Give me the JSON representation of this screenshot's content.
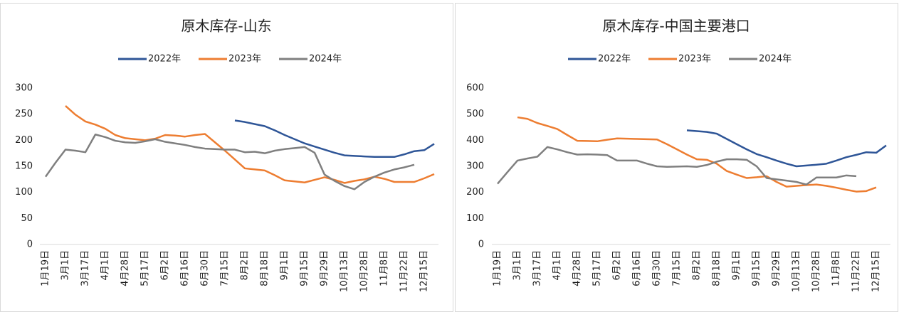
{
  "chart_data": [
    {
      "type": "line",
      "title": "原木库存-山东",
      "categories": [
        "1月19日",
        null,
        "3月1日",
        null,
        "3月17日",
        null,
        "4月1日",
        null,
        "4月28日",
        null,
        "5月17日",
        null,
        "6月2日",
        null,
        "6月16日",
        null,
        "6月30日",
        null,
        "7月15日",
        null,
        "8月2日",
        null,
        "8月18日",
        null,
        "9月1日",
        null,
        "9月15日",
        null,
        "9月29日",
        null,
        "10月13日",
        null,
        "10月28日",
        null,
        "11月8日",
        null,
        "11月22日",
        null,
        "12月15日",
        null
      ],
      "ylim": [
        0,
        300
      ],
      "yticks": [
        0,
        50,
        100,
        150,
        200,
        250,
        300
      ],
      "series": [
        {
          "name": "2022年",
          "color": "#2e5597",
          "values": [
            null,
            null,
            null,
            null,
            null,
            null,
            null,
            null,
            null,
            null,
            null,
            null,
            null,
            null,
            null,
            null,
            null,
            null,
            null,
            238,
            235,
            231,
            227,
            219,
            210,
            202,
            194,
            188,
            182,
            176,
            171,
            170,
            169,
            168,
            168,
            168,
            173,
            179,
            181,
            193
          ]
        },
        {
          "name": "2023年",
          "color": "#ed7d31",
          "values": [
            null,
            null,
            266,
            249,
            236,
            230,
            222,
            210,
            204,
            202,
            200,
            203,
            210,
            209,
            207,
            210,
            212,
            196,
            180,
            163,
            146,
            144,
            142,
            133,
            123,
            121,
            119,
            124,
            129,
            124,
            118,
            122,
            125,
            130,
            126,
            120,
            120,
            120,
            127,
            135
          ]
        },
        {
          "name": "2024年",
          "color": "#7f7f7f",
          "values": [
            130,
            157,
            182,
            180,
            177,
            211,
            206,
            199,
            196,
            195,
            198,
            202,
            197,
            194,
            191,
            187,
            184,
            183,
            182,
            182,
            177,
            178,
            175,
            180,
            183,
            185,
            187,
            176,
            134,
            122,
            112,
            106,
            120,
            130,
            138,
            144,
            148,
            153,
            null,
            null
          ]
        }
      ]
    },
    {
      "type": "line",
      "title": "原木库存-中国主要港口",
      "categories": [
        "1月19日",
        null,
        "3月1日",
        null,
        "3月17日",
        null,
        "4月1日",
        null,
        "4月28日",
        null,
        "5月17日",
        null,
        "6月2日",
        null,
        "6月16日",
        null,
        "6月30日",
        null,
        "7月15日",
        null,
        "8月2日",
        null,
        "8月18日",
        null,
        "9月1日",
        null,
        "9月15日",
        null,
        "9月29日",
        null,
        "10月13日",
        null,
        "10月28日",
        null,
        "11月8日",
        null,
        "11月22日",
        null,
        "12月15日",
        null
      ],
      "ylim": [
        0,
        600
      ],
      "yticks": [
        0,
        100,
        200,
        300,
        400,
        500,
        600
      ],
      "series": [
        {
          "name": "2022年",
          "color": "#2e5597",
          "values": [
            null,
            null,
            null,
            null,
            null,
            null,
            null,
            null,
            null,
            null,
            null,
            null,
            null,
            null,
            null,
            null,
            null,
            null,
            null,
            438,
            435,
            432,
            425,
            405,
            385,
            365,
            347,
            335,
            322,
            310,
            300,
            303,
            306,
            310,
            322,
            335,
            344,
            354,
            352,
            380
          ]
        },
        {
          "name": "2023年",
          "color": "#ed7d31",
          "values": [
            null,
            null,
            488,
            482,
            466,
            455,
            443,
            420,
            398,
            397,
            396,
            402,
            407,
            406,
            405,
            404,
            403,
            385,
            365,
            345,
            327,
            325,
            310,
            282,
            268,
            255,
            258,
            262,
            240,
            222,
            225,
            228,
            230,
            225,
            218,
            210,
            203,
            205,
            219,
            null
          ]
        },
        {
          "name": "2024年",
          "color": "#7f7f7f",
          "values": [
            233,
            278,
            322,
            330,
            337,
            374,
            365,
            354,
            345,
            346,
            345,
            343,
            322,
            322,
            322,
            310,
            300,
            298,
            299,
            300,
            298,
            305,
            318,
            327,
            327,
            325,
            300,
            255,
            250,
            245,
            240,
            230,
            257,
            257,
            257,
            265,
            262,
            null,
            null,
            null
          ]
        }
      ]
    }
  ]
}
